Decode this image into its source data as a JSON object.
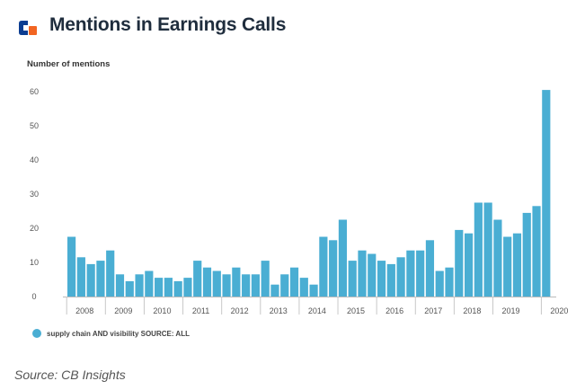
{
  "header": {
    "title": "Mentions in Earnings Calls",
    "logo_icon": "cb-insights-logo-icon",
    "logo_colors": [
      "#0b3d91",
      "#f26522"
    ]
  },
  "chart_data": {
    "type": "bar",
    "title": "Mentions in Earnings Calls",
    "xlabel": "",
    "ylabel": "Number of mentions",
    "ylim": [
      0,
      60
    ],
    "y_ticks": [
      0,
      10,
      20,
      30,
      40,
      50,
      60
    ],
    "grid": false,
    "bar_color": "#4aaed3",
    "year_labels": [
      "2008",
      "2009",
      "2010",
      "2011",
      "2012",
      "2013",
      "2014",
      "2015",
      "2016",
      "2017",
      "2018",
      "2019",
      "2020"
    ],
    "year_first_quarter_index": [
      0,
      4,
      8,
      12,
      16,
      20,
      24,
      28,
      32,
      36,
      40,
      44,
      49
    ],
    "series": [
      {
        "name": "supply chain AND visibility SOURCE: ALL",
        "values": [
          17.5,
          11.5,
          9.5,
          10.5,
          13.5,
          6.5,
          4.5,
          6.5,
          7.5,
          5.5,
          5.5,
          4.5,
          5.5,
          10.5,
          8.5,
          7.5,
          6.5,
          8.5,
          6.5,
          6.5,
          10.5,
          3.5,
          6.5,
          8.5,
          5.5,
          3.5,
          17.5,
          16.5,
          22.5,
          10.5,
          13.5,
          12.5,
          10.5,
          9.5,
          11.5,
          13.5,
          13.5,
          16.5,
          7.5,
          8.5,
          19.5,
          18.5,
          27.5,
          27.5,
          22.5,
          17.5,
          18.5,
          24.5,
          26.5,
          60.5
        ]
      }
    ]
  },
  "legend": {
    "label": "supply chain AND visibility SOURCE: ALL",
    "color": "#4aaed3"
  },
  "footer": {
    "source": "Source: CB Insights"
  }
}
